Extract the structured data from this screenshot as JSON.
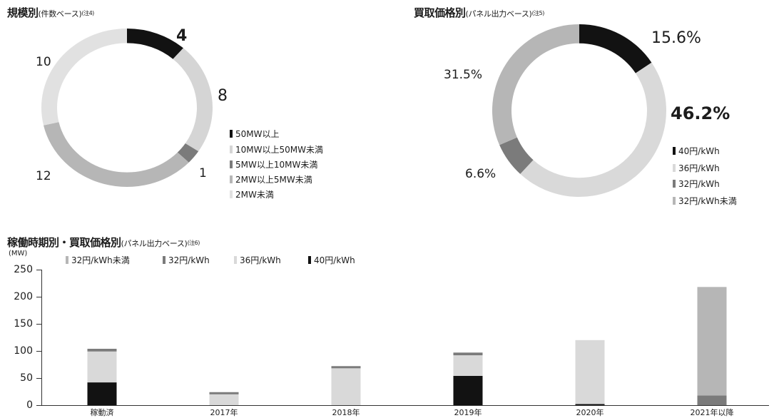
{
  "chart_data": [
    {
      "type": "pie",
      "style": "donut",
      "title": "規模別",
      "subtitle": "(件数ベース)",
      "note": "(注4)",
      "categories": [
        "50MW以上",
        "10MW以上50MW未満",
        "5MW以上10MW未満",
        "2MW以上5MW未満",
        "2MW未満"
      ],
      "values": [
        4,
        8,
        1,
        12,
        10
      ],
      "colors": [
        "#121212",
        "#d5d5d5",
        "#7b7b7b",
        "#b6b6b6",
        "#e1e1e1"
      ],
      "legend": "right"
    },
    {
      "type": "pie",
      "style": "donut",
      "title": "買取価格別",
      "subtitle": "(パネル出力ベース)",
      "note": "(注5)",
      "categories": [
        "40円/kWh",
        "36円/kWh",
        "32円/kWh",
        "32円/kWh未満"
      ],
      "values": [
        15.6,
        46.2,
        6.6,
        31.5
      ],
      "data_labels": [
        "15.6%",
        "46.2%",
        "6.6%",
        "31.5%"
      ],
      "colors": [
        "#121212",
        "#d9d9d9",
        "#7b7b7b",
        "#b6b6b6"
      ],
      "legend": "right"
    },
    {
      "type": "bar",
      "stacked": true,
      "title": "稼働時期別・買取価格別",
      "subtitle": "(パネル出力ベース)",
      "note": "(注6)",
      "ylabel": "(MW)",
      "ylim": [
        0,
        250
      ],
      "yticks": [
        0,
        50,
        100,
        150,
        200,
        250
      ],
      "categories": [
        "稼動済",
        "2017年",
        "2018年",
        "2019年",
        "2020年",
        "2021年以降"
      ],
      "series": [
        {
          "name": "32円/kWh未満",
          "color": "#b6b6b6",
          "values": [
            0,
            0,
            0,
            0,
            0,
            200
          ]
        },
        {
          "name": "32円/kWh",
          "color": "#7b7b7b",
          "values": [
            5,
            4,
            4,
            5,
            0,
            18
          ]
        },
        {
          "name": "36円/kWh",
          "color": "#d9d9d9",
          "values": [
            57,
            20,
            68,
            38,
            118,
            0
          ]
        },
        {
          "name": "40円/kWh",
          "color": "#121212",
          "values": [
            42,
            0,
            0,
            54,
            2,
            0
          ]
        }
      ],
      "legend": "top-left",
      "grid": false
    }
  ]
}
